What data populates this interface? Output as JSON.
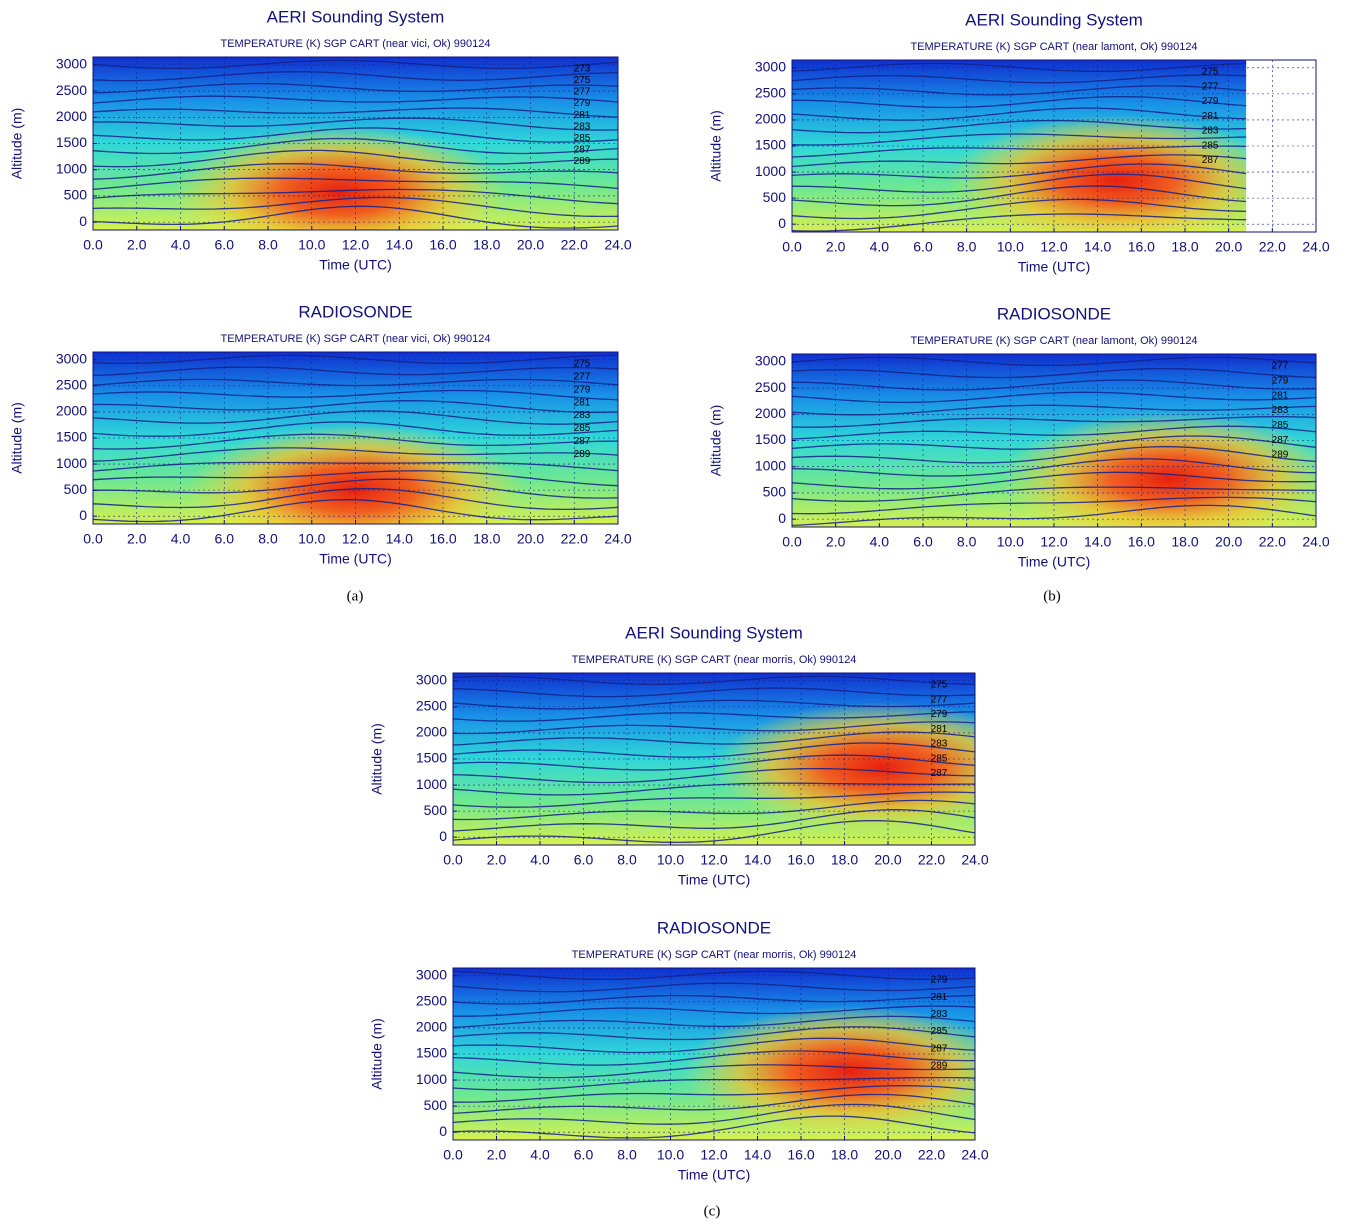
{
  "captions": [
    "(a)",
    "(b)",
    "(c)"
  ],
  "chart_data": [
    {
      "type": "contour",
      "title": "AERI Sounding System",
      "subtitle": "TEMPERATURE  (K)  SGP CART (near vici, Ok) 990124",
      "xlabel": "Time (UTC)",
      "ylabel": "Altitude (m)",
      "xlim": [
        0,
        24
      ],
      "xticks": [
        {
          "value": 0,
          "label": "0.0"
        },
        {
          "value": 2,
          "label": "2.0"
        },
        {
          "value": 4,
          "label": "4.0"
        },
        {
          "value": 6,
          "label": "6.0"
        },
        {
          "value": 8,
          "label": "8.0"
        },
        {
          "value": 10,
          "label": "10.0"
        },
        {
          "value": 12,
          "label": "12.0"
        },
        {
          "value": 14,
          "label": "14.0"
        },
        {
          "value": 16,
          "label": "16.0"
        },
        {
          "value": 18,
          "label": "18.0"
        },
        {
          "value": 20,
          "label": "20.0"
        },
        {
          "value": 22,
          "label": "22.0"
        },
        {
          "value": 24,
          "label": "24.0"
        }
      ],
      "ylim": [
        -150,
        3150
      ],
      "yticks": [
        0,
        500,
        1000,
        1500,
        2000,
        2500,
        3000
      ],
      "grid": true,
      "contour_levels": [
        273,
        275,
        277,
        279,
        281,
        283,
        285,
        287,
        289
      ]
    },
    {
      "type": "contour",
      "title": "RADIOSONDE",
      "subtitle": "TEMPERATURE  (K)  SGP CART (near vici, Ok) 990124",
      "xlabel": "Time (UTC)",
      "ylabel": "Altitude (m)",
      "xlim": [
        0,
        24
      ],
      "xticks": [
        {
          "value": 0,
          "label": "0.0"
        },
        {
          "value": 2,
          "label": "2.0"
        },
        {
          "value": 4,
          "label": "4.0"
        },
        {
          "value": 6,
          "label": "6.0"
        },
        {
          "value": 8,
          "label": "8.0"
        },
        {
          "value": 10,
          "label": "10.0"
        },
        {
          "value": 12,
          "label": "12.0"
        },
        {
          "value": 14,
          "label": "14.0"
        },
        {
          "value": 16,
          "label": "16.0"
        },
        {
          "value": 18,
          "label": "18.0"
        },
        {
          "value": 20,
          "label": "20.0"
        },
        {
          "value": 22,
          "label": "22.0"
        },
        {
          "value": 24,
          "label": "24.0"
        }
      ],
      "ylim": [
        -150,
        3150
      ],
      "yticks": [
        0,
        500,
        1000,
        1500,
        2000,
        2500,
        3000
      ],
      "grid": true,
      "contour_levels": [
        275,
        277,
        279,
        281,
        283,
        285,
        287,
        289
      ]
    },
    {
      "type": "contour",
      "title": "AERI Sounding System",
      "subtitle": "TEMPERATURE  (K)  SGP CART (near lamont, Ok) 990124",
      "xlabel": "Time (UTC)",
      "ylabel": "Altitude (m)",
      "xlim": [
        0,
        24
      ],
      "xticks": [
        {
          "value": 0,
          "label": "0.0"
        },
        {
          "value": 2,
          "label": "2.0"
        },
        {
          "value": 4,
          "label": "4.0"
        },
        {
          "value": 6,
          "label": "6.0"
        },
        {
          "value": 8,
          "label": "8.0"
        },
        {
          "value": 10,
          "label": "10.0"
        },
        {
          "value": 12,
          "label": "12.0"
        },
        {
          "value": 14,
          "label": "14.0"
        },
        {
          "value": 16,
          "label": "16.0"
        },
        {
          "value": 18,
          "label": "18.0"
        },
        {
          "value": 20,
          "label": "20.0"
        },
        {
          "value": 22,
          "label": "22.0"
        },
        {
          "value": 24,
          "label": "24.0"
        }
      ],
      "ylim": [
        -150,
        3150
      ],
      "yticks": [
        0,
        500,
        1000,
        1500,
        2000,
        2500,
        3000
      ],
      "grid": true,
      "data_xmax": 20.8,
      "contour_levels": [
        275,
        277,
        279,
        281,
        283,
        285,
        287
      ]
    },
    {
      "type": "contour",
      "title": "RADIOSONDE",
      "subtitle": "TEMPERATURE  (K)  SGP CART (near lamont, Ok) 990124",
      "xlabel": "Time (UTC)",
      "ylabel": "Altitude (m)",
      "xlim": [
        0,
        24
      ],
      "xticks": [
        {
          "value": 0,
          "label": "0.0"
        },
        {
          "value": 2,
          "label": "2.0"
        },
        {
          "value": 4,
          "label": "4.0"
        },
        {
          "value": 6,
          "label": "6.0"
        },
        {
          "value": 8,
          "label": "8.0"
        },
        {
          "value": 10,
          "label": "10.0"
        },
        {
          "value": 12,
          "label": "12.0"
        },
        {
          "value": 14,
          "label": "14.0"
        },
        {
          "value": 16,
          "label": "16.0"
        },
        {
          "value": 18,
          "label": "18.0"
        },
        {
          "value": 20,
          "label": "20.0"
        },
        {
          "value": 22,
          "label": "22.0"
        },
        {
          "value": 24,
          "label": "24.0"
        }
      ],
      "ylim": [
        -150,
        3150
      ],
      "yticks": [
        0,
        500,
        1000,
        1500,
        2000,
        2500,
        3000
      ],
      "grid": true,
      "contour_levels": [
        277,
        279,
        281,
        283,
        285,
        287,
        289
      ]
    },
    {
      "type": "contour",
      "title": "AERI Sounding System",
      "subtitle": "TEMPERATURE  (K)  SGP CART (near morris, Ok) 990124",
      "xlabel": "Time (UTC)",
      "ylabel": "Altitude (m)",
      "xlim": [
        0,
        24
      ],
      "xticks": [
        {
          "value": 0,
          "label": "0.0"
        },
        {
          "value": 2,
          "label": "2.0"
        },
        {
          "value": 4,
          "label": "4.0"
        },
        {
          "value": 6,
          "label": "6.0"
        },
        {
          "value": 8,
          "label": "8.0"
        },
        {
          "value": 10,
          "label": "10.0"
        },
        {
          "value": 12,
          "label": "12.0"
        },
        {
          "value": 14,
          "label": "14.0"
        },
        {
          "value": 16,
          "label": "16.0"
        },
        {
          "value": 18,
          "label": "18.0"
        },
        {
          "value": 20,
          "label": "20.0"
        },
        {
          "value": 22,
          "label": "22.0"
        },
        {
          "value": 24,
          "label": "24.0"
        }
      ],
      "ylim": [
        -150,
        3150
      ],
      "yticks": [
        0,
        500,
        1000,
        1500,
        2000,
        2500,
        3000
      ],
      "grid": true,
      "contour_levels": [
        275,
        277,
        279,
        281,
        283,
        285,
        287
      ]
    },
    {
      "type": "contour",
      "title": "RADIOSONDE",
      "subtitle": "TEMPERATURE  (K)  SGP CART (near morris, Ok) 990124",
      "xlabel": "Time (UTC)",
      "ylabel": "Altitude (m)",
      "xlim": [
        0,
        24
      ],
      "xticks": [
        {
          "value": 0,
          "label": "0.0"
        },
        {
          "value": 2,
          "label": "2.0"
        },
        {
          "value": 4,
          "label": "4.0"
        },
        {
          "value": 6,
          "label": "6.0"
        },
        {
          "value": 8,
          "label": "8.0"
        },
        {
          "value": 10,
          "label": "10.0"
        },
        {
          "value": 12,
          "label": "12.0"
        },
        {
          "value": 14,
          "label": "14.0"
        },
        {
          "value": 16,
          "label": "16.0"
        },
        {
          "value": 18,
          "label": "18.0"
        },
        {
          "value": 20,
          "label": "20.0"
        },
        {
          "value": 22,
          "label": "22.0"
        },
        {
          "value": 24,
          "label": "24.0"
        }
      ],
      "ylim": [
        -150,
        3150
      ],
      "yticks": [
        0,
        500,
        1000,
        1500,
        2000,
        2500,
        3000
      ],
      "grid": true,
      "contour_levels": [
        279,
        281,
        283,
        285,
        287,
        289
      ]
    }
  ]
}
